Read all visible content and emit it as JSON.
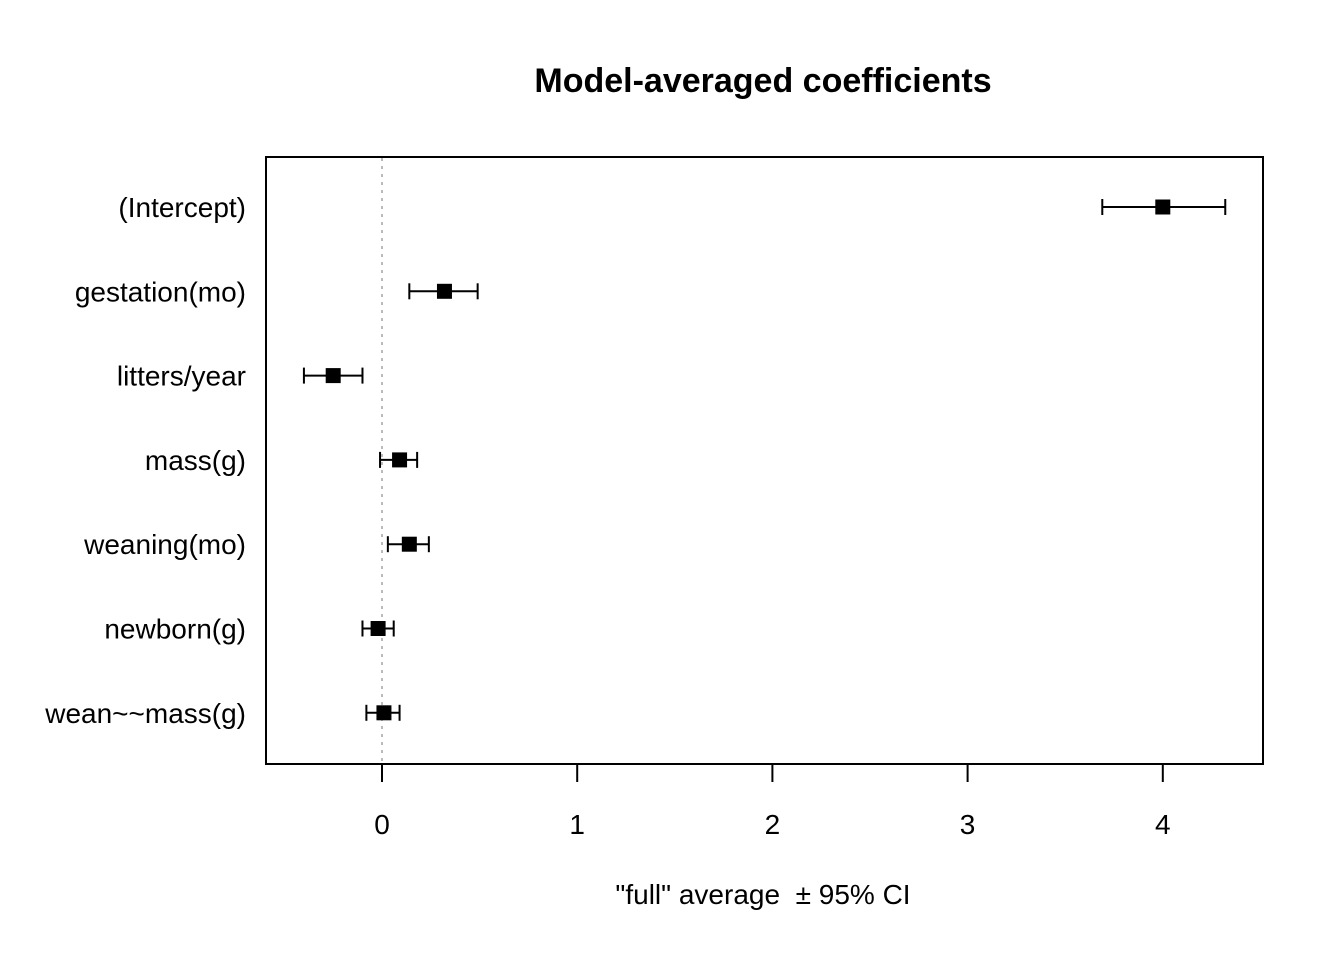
{
  "chart_data": {
    "type": "scatter",
    "title": "Model-averaged coefficients",
    "xlabel": "\"full\" average  ± 95% CI",
    "ylabel": "",
    "xlim": [
      -0.6,
      4.5
    ],
    "xticks": [
      "0",
      "1",
      "2",
      "3",
      "4"
    ],
    "xtick_values": [
      0,
      1,
      2,
      3,
      4
    ],
    "grid": false,
    "reference_line": {
      "x": 0,
      "style": "dotted",
      "color": "#bbbbbb"
    },
    "categories": [
      "(Intercept)",
      "gestation(mo)",
      "litters/year",
      "mass(g)",
      "weaning(mo)",
      "newborn(g)",
      "wean~~mass(g)"
    ],
    "estimates": [
      4.0,
      0.32,
      -0.25,
      0.09,
      0.14,
      -0.02,
      0.01
    ],
    "ci_lower": [
      3.69,
      0.14,
      -0.4,
      -0.01,
      0.03,
      -0.1,
      -0.08
    ],
    "ci_upper": [
      4.32,
      0.49,
      -0.1,
      0.18,
      0.24,
      0.06,
      0.09
    ],
    "marker": "square",
    "color": "#000000"
  }
}
